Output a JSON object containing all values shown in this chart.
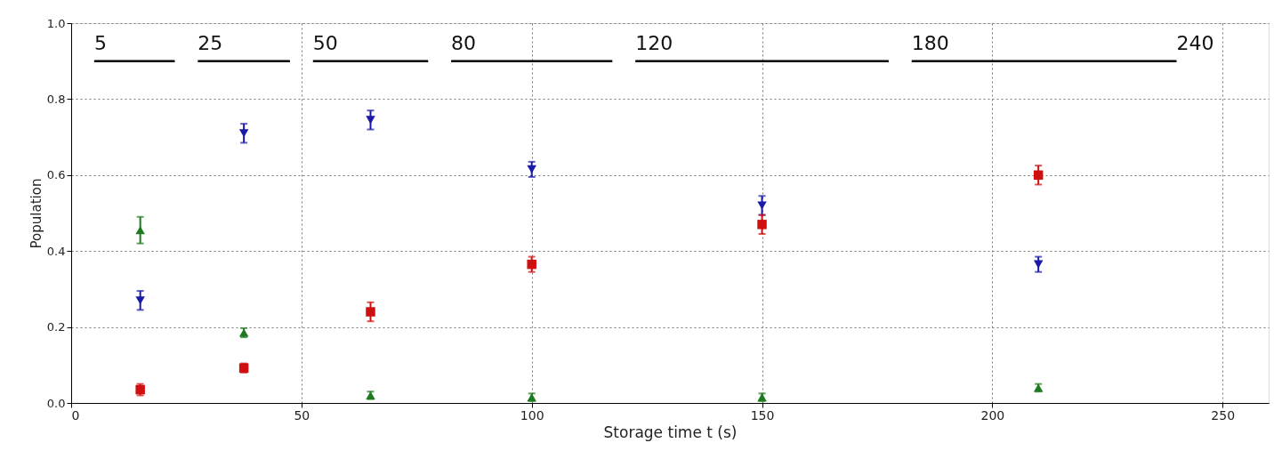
{
  "chart_data": {
    "type": "scatter",
    "xlabel": "Storage time t (s)",
    "ylabel": "Population",
    "x": [
      15,
      37.5,
      65,
      100,
      150,
      210
    ],
    "series": [
      {
        "color": "#1a1aa8",
        "marker": "triangle-down",
        "values": [
          0.27,
          0.71,
          0.745,
          0.615,
          0.52,
          0.365
        ],
        "errors": [
          0.025,
          0.025,
          0.025,
          0.02,
          0.025,
          0.02
        ]
      },
      {
        "color": "#d01010",
        "marker": "square",
        "values": [
          0.035,
          0.092,
          0.24,
          0.365,
          0.47,
          0.6
        ],
        "errors": [
          0.015,
          0.012,
          0.025,
          0.02,
          0.025,
          0.025
        ]
      },
      {
        "color": "#1e7a1e",
        "marker": "triangle",
        "values": [
          0.455,
          0.185,
          0.02,
          0.015,
          0.015,
          0.04
        ],
        "errors": [
          0.035,
          0.012,
          0.01,
          0.01,
          0.01,
          0.01
        ]
      },
      {
        "type": "line",
        "color": "#000000",
        "marker": "none",
        "line_style": "solid",
        "x": [
          5,
          22.5
        ],
        "values": [
          0.9,
          0.9
        ]
      },
      {
        "type": "line",
        "color": "#000000",
        "marker": "none",
        "line_style": "solid",
        "x": [
          27.5,
          47.5
        ],
        "values": [
          0.9,
          0.9
        ]
      },
      {
        "type": "line",
        "color": "#000000",
        "marker": "none",
        "line_style": "solid",
        "x": [
          52.5,
          77.5
        ],
        "values": [
          0.9,
          0.9
        ]
      },
      {
        "type": "line",
        "color": "#000000",
        "marker": "none",
        "line_style": "solid",
        "x": [
          82.5,
          117.5
        ],
        "values": [
          0.9,
          0.9
        ]
      },
      {
        "type": "line",
        "color": "#000000",
        "marker": "none",
        "line_style": "solid",
        "x": [
          122.5,
          177.5
        ],
        "values": [
          0.9,
          0.9
        ]
      },
      {
        "type": "line",
        "color": "#000000",
        "marker": "none",
        "line_style": "solid",
        "x": [
          182.5,
          240
        ],
        "values": [
          0.9,
          0.9
        ]
      }
    ],
    "annotations": [
      {
        "text": "5",
        "x": 5,
        "y": 0.9
      },
      {
        "text": "25",
        "x": 27.5,
        "y": 0.9
      },
      {
        "text": "50",
        "x": 52.5,
        "y": 0.9
      },
      {
        "text": "80",
        "x": 82.5,
        "y": 0.9
      },
      {
        "text": "120",
        "x": 122.5,
        "y": 0.9
      },
      {
        "text": "180",
        "x": 182.5,
        "y": 0.9
      },
      {
        "text": "240",
        "x": 240,
        "y": 0.9
      }
    ],
    "xlim": [
      0,
      260
    ],
    "xticks": [
      0,
      50,
      100,
      150,
      200,
      250
    ],
    "ylim": [
      0,
      1
    ],
    "yticks": [
      {
        "value": 0,
        "label": "0.0"
      },
      {
        "value": 0.2,
        "label": "0.2"
      },
      {
        "value": 0.4,
        "label": "0.4"
      },
      {
        "value": 0.6,
        "label": "0.6"
      },
      {
        "value": 0.8,
        "label": "0.8"
      },
      {
        "value": 1,
        "label": "1.0"
      }
    ],
    "grid": true
  }
}
